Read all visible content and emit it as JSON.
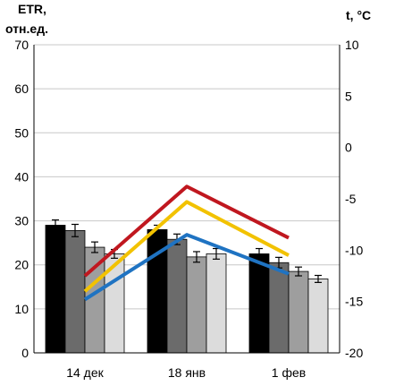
{
  "chart_data": {
    "type": "bar",
    "categories": [
      "14 дек",
      "18 янв",
      "1 фев"
    ],
    "left_axis": {
      "label_line1": "ETR,",
      "label_line2": "отн.ед.",
      "range": [
        0,
        70
      ],
      "ticks": [
        "0",
        "10",
        "20",
        "30",
        "40",
        "50",
        "60",
        "70"
      ]
    },
    "right_axis": {
      "label": "t, °C",
      "range": [
        -20,
        10
      ],
      "ticks": [
        "-20",
        "-15",
        "-10",
        "-5",
        "0",
        "5",
        "10"
      ]
    },
    "bar_series": [
      {
        "color": "#000000",
        "values": [
          29,
          28,
          22.5
        ],
        "errors": [
          1.2,
          1.0,
          1.2
        ]
      },
      {
        "color": "#6b6b6b",
        "values": [
          27.8,
          25.8,
          20.5
        ],
        "errors": [
          1.4,
          1.2,
          1.2
        ]
      },
      {
        "color": "#9e9e9e",
        "values": [
          24,
          21.8,
          18.5
        ],
        "errors": [
          1.2,
          1.2,
          1.0
        ]
      },
      {
        "color": "#dcdcdc",
        "values": [
          22.5,
          22.5,
          16.8
        ],
        "errors": [
          1.0,
          1.2,
          0.8
        ]
      }
    ],
    "line_series": [
      {
        "color": "#c0171f",
        "values": [
          -12.5,
          -3.8,
          -8.8
        ]
      },
      {
        "color": "#f2c200",
        "values": [
          -14,
          -5.3,
          -10.5
        ]
      },
      {
        "color": "#1f73c2",
        "values": [
          -14.8,
          -8.5,
          -12.3
        ]
      }
    ],
    "grid": true,
    "legend": "none"
  }
}
